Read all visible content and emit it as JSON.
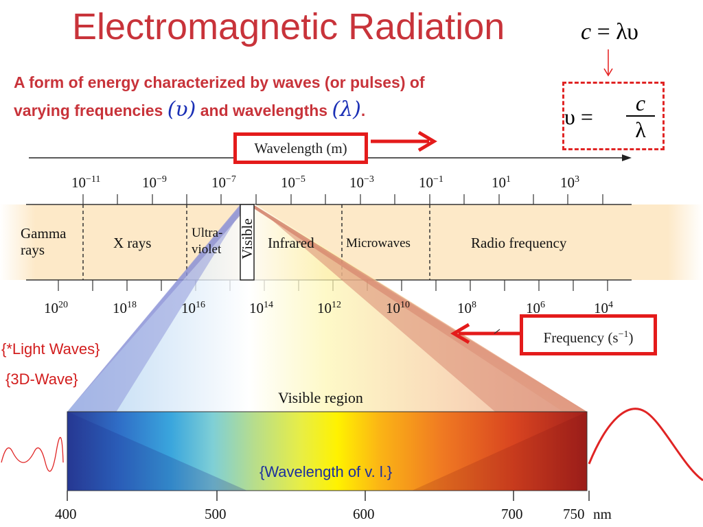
{
  "title": "Electromagnetic Radiation",
  "subtitle": {
    "line1": "A form of energy characterized by waves (or pulses) of",
    "line2_before": "varying frequencies ",
    "nu_symbol": "(υ)",
    "line2_middle": " and wavelengths ",
    "lambda_symbol": "(λ)",
    "line2_after": "."
  },
  "formula_top": {
    "c": "c",
    "eq": " = ",
    "rhs": "λυ"
  },
  "formula_box": {
    "lhs": "υ = ",
    "numerator": "c",
    "denominator": "λ"
  },
  "wavelength_axis": {
    "label": "Wavelength (m)",
    "ticks": [
      {
        "base": "10",
        "exp": "−11"
      },
      {
        "base": "10",
        "exp": "−9"
      },
      {
        "base": "10",
        "exp": "−7"
      },
      {
        "base": "10",
        "exp": "−5"
      },
      {
        "base": "10",
        "exp": "−3"
      },
      {
        "base": "10",
        "exp": "−1"
      },
      {
        "base": "10",
        "exp": "1"
      },
      {
        "base": "10",
        "exp": "3"
      }
    ]
  },
  "regions": {
    "gamma": [
      "Gamma",
      "rays"
    ],
    "xrays": "X rays",
    "uv": [
      "Ultra-",
      "violet"
    ],
    "visible": "Visible",
    "infrared": "Infrared",
    "microwaves": "Microwaves",
    "radio": "Radio frequency"
  },
  "frequency_axis": {
    "label": "Frequency (s",
    "label_exp": "−1",
    "label_end": ")",
    "ticks": [
      {
        "base": "10",
        "exp": "20"
      },
      {
        "base": "10",
        "exp": "18"
      },
      {
        "base": "10",
        "exp": "16"
      },
      {
        "base": "10",
        "exp": "14"
      },
      {
        "base": "10",
        "exp": "12"
      },
      {
        "base": "10",
        "exp": "10"
      },
      {
        "base": "10",
        "exp": "8"
      },
      {
        "base": "10",
        "exp": "6"
      },
      {
        "base": "10",
        "exp": "4"
      }
    ]
  },
  "side_labels": {
    "light_waves": "{*Light Waves}",
    "wave_3d": "{3D-Wave}"
  },
  "visible_region": {
    "label": "Visible region",
    "caption": "{Wavelength of v. l.}",
    "nm_ticks": [
      "400",
      "500",
      "600",
      "700",
      "750"
    ],
    "nm_unit": "nm"
  },
  "colors": {
    "title": "#c8333a",
    "accent_red": "#e41b1b",
    "symbol_blue": "#1a2fb5",
    "band": "#fde9c8"
  }
}
